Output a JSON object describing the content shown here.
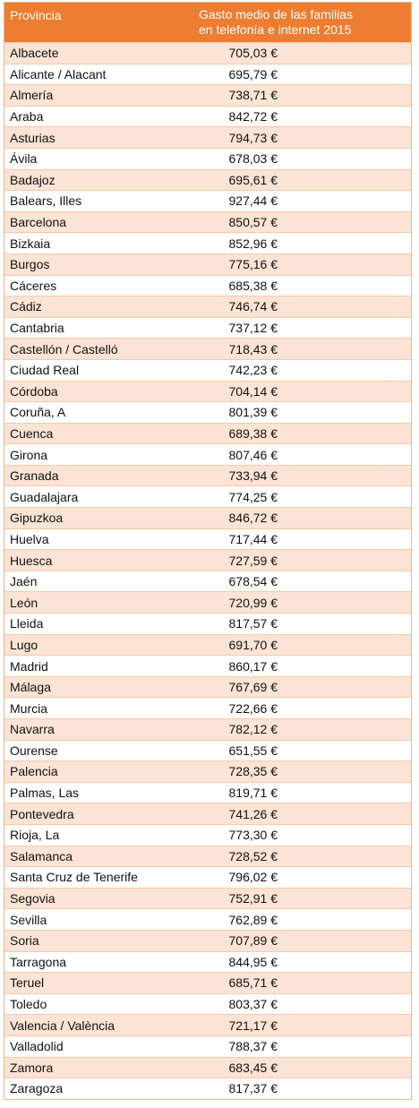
{
  "header": {
    "col_provincia": "Provincia",
    "col_gasto_line1": "Gasto medio de las familias",
    "col_gasto_line2": "en telefonía e internet 2015"
  },
  "rows": [
    {
      "provincia": "Albacete",
      "gasto": "705,03 €"
    },
    {
      "provincia": "Alicante / Alacant",
      "gasto": "695,79 €"
    },
    {
      "provincia": "Almería",
      "gasto": "738,71 €"
    },
    {
      "provincia": "Araba",
      "gasto": "842,72 €"
    },
    {
      "provincia": "Asturias",
      "gasto": "794,73 €"
    },
    {
      "provincia": "Ávila",
      "gasto": "678,03 €"
    },
    {
      "provincia": "Badajoz",
      "gasto": "695,61 €"
    },
    {
      "provincia": "Balears, Illes",
      "gasto": "927,44 €"
    },
    {
      "provincia": "Barcelona",
      "gasto": "850,57 €"
    },
    {
      "provincia": "Bizkaia",
      "gasto": "852,96 €"
    },
    {
      "provincia": "Burgos",
      "gasto": "775,16 €"
    },
    {
      "provincia": "Cáceres",
      "gasto": "685,38 €"
    },
    {
      "provincia": "Cádiz",
      "gasto": "746,74 €"
    },
    {
      "provincia": "Cantabria",
      "gasto": "737,12 €"
    },
    {
      "provincia": "Castellón / Castelló",
      "gasto": "718,43 €"
    },
    {
      "provincia": "Ciudad Real",
      "gasto": "742,23 €"
    },
    {
      "provincia": "Córdoba",
      "gasto": "704,14 €"
    },
    {
      "provincia": "Coruña, A",
      "gasto": "801,39 €"
    },
    {
      "provincia": "Cuenca",
      "gasto": "689,38 €"
    },
    {
      "provincia": "Girona",
      "gasto": "807,46 €"
    },
    {
      "provincia": "Granada",
      "gasto": "733,94 €"
    },
    {
      "provincia": "Guadalajara",
      "gasto": "774,25 €"
    },
    {
      "provincia": "Gipuzkoa",
      "gasto": "846,72 €"
    },
    {
      "provincia": "Huelva",
      "gasto": "717,44 €"
    },
    {
      "provincia": "Huesca",
      "gasto": "727,59 €"
    },
    {
      "provincia": "Jaén",
      "gasto": "678,54 €"
    },
    {
      "provincia": "León",
      "gasto": "720,99 €"
    },
    {
      "provincia": "Lleida",
      "gasto": "817,57 €"
    },
    {
      "provincia": "Lugo",
      "gasto": "691,70 €"
    },
    {
      "provincia": "Madrid",
      "gasto": "860,17 €"
    },
    {
      "provincia": "Málaga",
      "gasto": "767,69 €"
    },
    {
      "provincia": "Murcia",
      "gasto": "722,66 €"
    },
    {
      "provincia": "Navarra",
      "gasto": "782,12 €"
    },
    {
      "provincia": "Ourense",
      "gasto": "651,55 €"
    },
    {
      "provincia": "Palencia",
      "gasto": "728,35 €"
    },
    {
      "provincia": "Palmas, Las",
      "gasto": "819,71 €"
    },
    {
      "provincia": "Pontevedra",
      "gasto": "741,26 €"
    },
    {
      "provincia": "Rioja, La",
      "gasto": "773,30 €"
    },
    {
      "provincia": "Salamanca",
      "gasto": "728,52 €"
    },
    {
      "provincia": "Santa Cruz de Tenerife",
      "gasto": "796,02 €"
    },
    {
      "provincia": "Segovia",
      "gasto": "752,91 €"
    },
    {
      "provincia": "Sevilla",
      "gasto": "762,89 €"
    },
    {
      "provincia": "Soria",
      "gasto": "707,89 €"
    },
    {
      "provincia": "Tarragona",
      "gasto": "844,95 €"
    },
    {
      "provincia": "Teruel",
      "gasto": "685,71 €"
    },
    {
      "provincia": "Toledo",
      "gasto": "803,37 €"
    },
    {
      "provincia": "Valencia  / València",
      "gasto": "721,17 €"
    },
    {
      "provincia": "Valladolid",
      "gasto": "788,37 €"
    },
    {
      "provincia": "Zamora",
      "gasto": "683,45 €"
    },
    {
      "provincia": "Zaragoza",
      "gasto": "817,37 €"
    }
  ],
  "colors": {
    "header_bg": "#ed7d31",
    "header_text": "#ffffff",
    "band_odd": "#fbe4d5",
    "band_even": "#ffffff"
  }
}
